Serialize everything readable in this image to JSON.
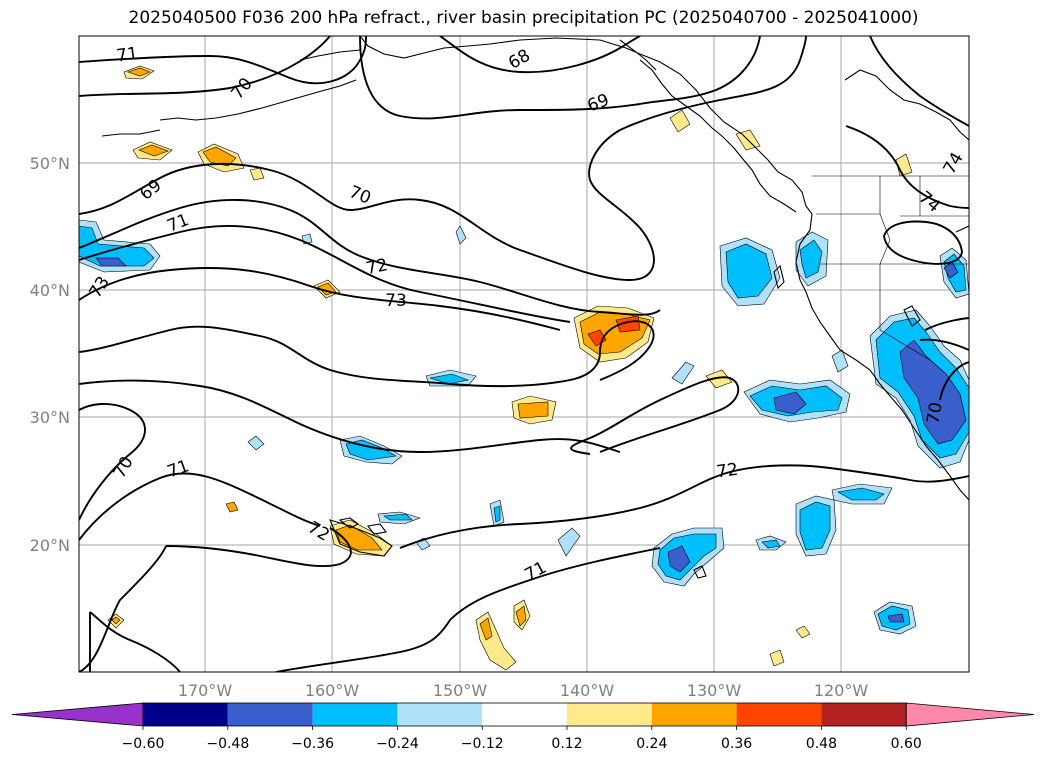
{
  "title": "2025040500 F036 200 hPa refract., river basin precipitation PC (2025040700 - 2025041000)",
  "map": {
    "lon_labels": [
      "170°W",
      "160°W",
      "150°W",
      "140°W",
      "130°W",
      "120°W"
    ],
    "lat_labels": [
      "50°N",
      "40°N",
      "30°N",
      "20°N"
    ],
    "contour_labels": [
      "71",
      "70",
      "68",
      "69",
      "69",
      "70",
      "71",
      "72",
      "73",
      "73",
      "74",
      "74",
      "70",
      "71",
      "72",
      "72",
      "71",
      "70"
    ]
  },
  "colorbar": {
    "ticks": [
      "−0.60",
      "−0.48",
      "−0.36",
      "−0.24",
      "−0.12",
      "0.12",
      "0.24",
      "0.36",
      "0.48",
      "0.60"
    ],
    "colors": [
      "#9932cc",
      "#00008b",
      "#3a5fcd",
      "#00bfff",
      "#afe1fa",
      "#ffffff",
      "#ffe98a",
      "#ffa500",
      "#ff4500",
      "#b22222",
      "#ff88aa"
    ]
  }
}
